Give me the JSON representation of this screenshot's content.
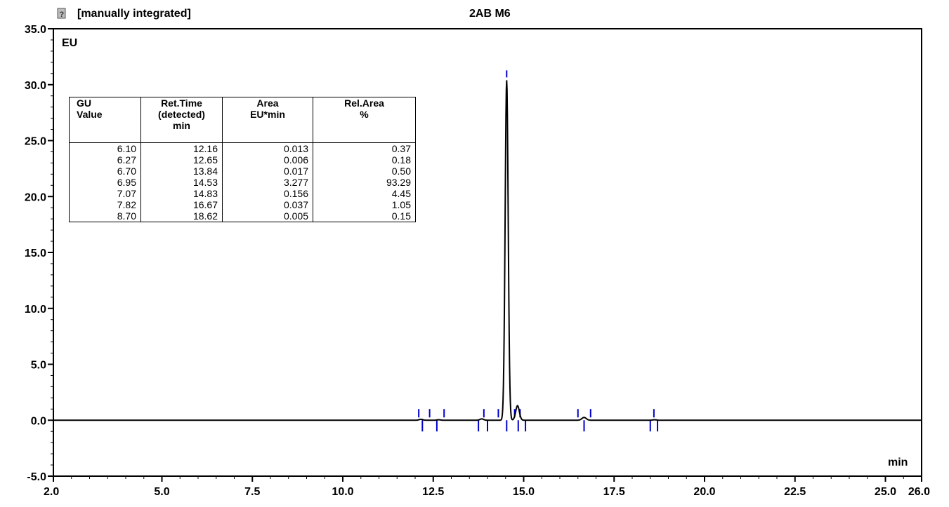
{
  "header": {
    "status_label": "[manually integrated]",
    "sample_name": "2AB M6"
  },
  "chart_data": {
    "type": "line",
    "ylabel": "EU",
    "xlabel": "min",
    "xlim": [
      2.0,
      26.0
    ],
    "ylim": [
      -5.0,
      35.0
    ],
    "x_ticks": [
      "2.0",
      "5.0",
      "7.5",
      "10.0",
      "12.5",
      "15.0",
      "17.5",
      "20.0",
      "22.5",
      "25.0",
      "26.0"
    ],
    "y_ticks": [
      "-5.0",
      "0.0",
      "5.0",
      "10.0",
      "15.0",
      "20.0",
      "25.0",
      "30.0",
      "35.0"
    ],
    "series": [
      {
        "color": "#000000",
        "peaks": [
          {
            "rt": 12.16,
            "height": 0.08,
            "width": 0.05
          },
          {
            "rt": 12.65,
            "height": 0.04,
            "width": 0.05
          },
          {
            "rt": 13.84,
            "height": 0.12,
            "width": 0.05
          },
          {
            "rt": 14.53,
            "height": 30.4,
            "width": 0.042
          },
          {
            "rt": 14.83,
            "height": 1.3,
            "width": 0.05
          },
          {
            "rt": 16.67,
            "height": 0.25,
            "width": 0.06
          },
          {
            "rt": 18.62,
            "height": 0.04,
            "width": 0.05
          }
        ]
      }
    ],
    "integration_marks_color": "#0000cc",
    "integration_marks": [
      12.1,
      12.2,
      12.4,
      12.6,
      12.8,
      13.75,
      13.9,
      14.0,
      14.3,
      14.53,
      14.75,
      14.85,
      14.9,
      15.05,
      16.5,
      16.67,
      16.85,
      18.5,
      18.6,
      18.7
    ]
  },
  "table": {
    "headers": [
      [
        "GU",
        "Value",
        ""
      ],
      [
        "Ret.Time",
        "(detected)",
        "min"
      ],
      [
        "",
        "Area",
        "EU*min"
      ],
      [
        "",
        "Rel.Area",
        "%"
      ]
    ],
    "rows": [
      [
        "6.10",
        "12.16",
        "0.013",
        "0.37"
      ],
      [
        "6.27",
        "12.65",
        "0.006",
        "0.18"
      ],
      [
        "6.70",
        "13.84",
        "0.017",
        "0.50"
      ],
      [
        "6.95",
        "14.53",
        "3.277",
        "93.29"
      ],
      [
        "7.07",
        "14.83",
        "0.156",
        "4.45"
      ],
      [
        "7.82",
        "16.67",
        "0.037",
        "1.05"
      ],
      [
        "8.70",
        "18.62",
        "0.005",
        "0.15"
      ]
    ]
  }
}
